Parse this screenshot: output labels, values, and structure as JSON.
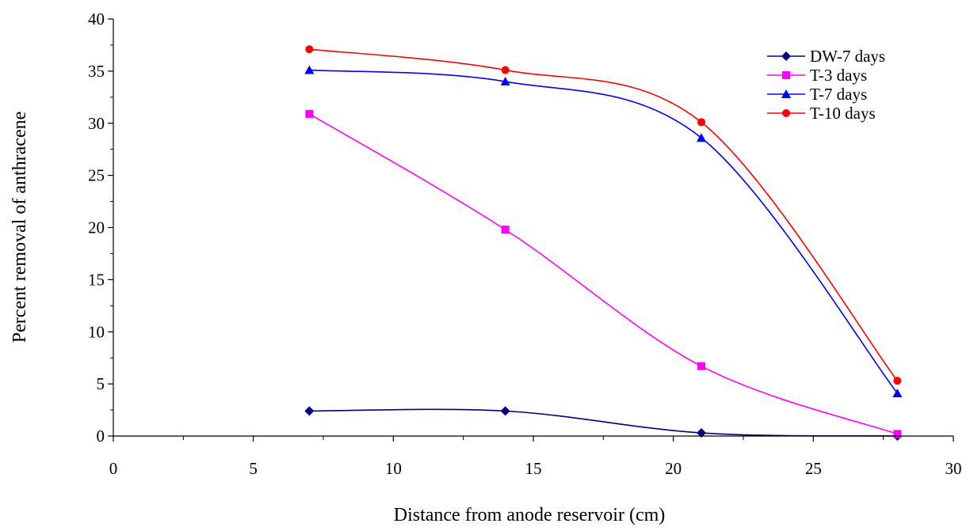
{
  "chart_data": {
    "type": "line",
    "title": "",
    "xlabel": "Distance from anode reservoir (cm)",
    "ylabel": "Percent removal of anthracene",
    "xlim": [
      0,
      30
    ],
    "ylim": [
      0,
      40
    ],
    "xticks": [
      0,
      5,
      10,
      15,
      20,
      25,
      30
    ],
    "yticks": [
      0,
      5,
      10,
      15,
      20,
      25,
      30,
      35,
      40
    ],
    "x_tick_labels": [
      "0",
      "5",
      "10",
      "15",
      "20",
      "25",
      "30"
    ],
    "y_tick_labels": [
      "0",
      "5",
      "10",
      "15",
      "20",
      "25",
      "30",
      "35",
      "40"
    ],
    "grid": false,
    "legend_position": "top-right",
    "x": [
      7,
      14,
      21,
      28
    ],
    "series": [
      {
        "name": "DW-7 days",
        "values": [
          2.4,
          2.4,
          0.3,
          0.0
        ],
        "color": "#000080",
        "marker": "diamond"
      },
      {
        "name": "T-3 days",
        "values": [
          30.9,
          19.8,
          6.7,
          0.2
        ],
        "color": "#FF00FF",
        "marker": "square"
      },
      {
        "name": "T-7 days",
        "values": [
          35.1,
          34.0,
          28.6,
          4.1
        ],
        "color": "#0000FF",
        "marker": "triangle"
      },
      {
        "name": "T-10 days",
        "values": [
          37.1,
          35.1,
          30.1,
          5.3
        ],
        "color": "#FF0000",
        "marker": "circle"
      }
    ]
  }
}
